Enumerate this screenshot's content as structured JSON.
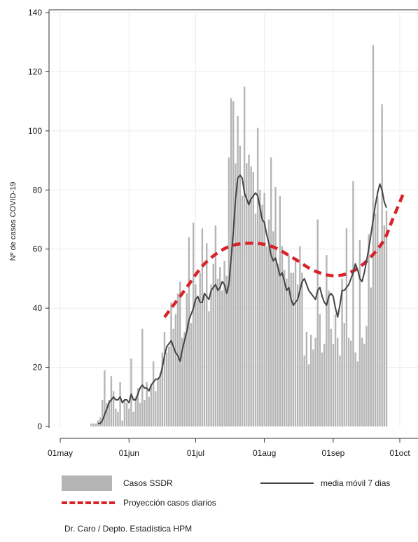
{
  "chart_data": {
    "type": "bar",
    "xlabel": "",
    "ylabel": "Nº de casos COVID-19",
    "ylim": [
      0,
      140
    ],
    "yticks": [
      0,
      20,
      40,
      60,
      80,
      100,
      120,
      140
    ],
    "xticks": [
      {
        "label": "01may",
        "day": 0
      },
      {
        "label": "01jun",
        "day": 31
      },
      {
        "label": "01jul",
        "day": 61
      },
      {
        "label": "01aug",
        "day": 92
      },
      {
        "label": "01sep",
        "day": 123
      },
      {
        "label": "01oct",
        "day": 153
      }
    ],
    "x_start": "2020-05-15",
    "x_end": "2020-10-04",
    "grid": true,
    "series": [
      {
        "name": "Casos SSDR",
        "type": "bar",
        "color": "#b5b5b5",
        "values": [
          1,
          1,
          1,
          2,
          3,
          9,
          19,
          8,
          9,
          17,
          12,
          6,
          5,
          15,
          2,
          9,
          8,
          6,
          23,
          5,
          10,
          13,
          8,
          33,
          9,
          15,
          10,
          14,
          22,
          12,
          16,
          18,
          25,
          32,
          25,
          27,
          42,
          33,
          38,
          45,
          49,
          30,
          32,
          45,
          64,
          35,
          69,
          48,
          43,
          52,
          67,
          45,
          62,
          39,
          48,
          55,
          68,
          50,
          54,
          46,
          56,
          51,
          91,
          111,
          110,
          89,
          105,
          95,
          78,
          115,
          89,
          92,
          88,
          86,
          72,
          101,
          80,
          75,
          79,
          61,
          70,
          91,
          66,
          81,
          55,
          78,
          61,
          53,
          50,
          58,
          52,
          52,
          56,
          48,
          61,
          52,
          24,
          32,
          21,
          31,
          26,
          30,
          70,
          38,
          25,
          28,
          58,
          46,
          33,
          28,
          38,
          30,
          24,
          50,
          35,
          67,
          30,
          29,
          83,
          25,
          22,
          63,
          30,
          28,
          34,
          65,
          47,
          129,
          72,
          78,
          61,
          109,
          68,
          73
        ]
      },
      {
        "name": "media móvil 7 dias",
        "type": "line",
        "color": "#444444",
        "values": [
          null,
          null,
          null,
          1,
          1,
          2,
          4,
          6,
          8,
          9,
          10,
          9,
          9,
          10,
          8,
          9,
          9,
          8,
          11,
          9,
          9,
          11,
          13,
          14,
          13,
          13,
          12,
          14,
          15,
          16,
          16,
          17,
          20,
          24,
          27,
          28,
          29,
          27,
          25,
          24,
          22,
          26,
          29,
          32,
          36,
          38,
          40,
          43,
          44,
          42,
          42,
          45,
          44,
          43,
          46,
          47,
          48,
          46,
          47,
          49,
          48,
          45,
          48,
          57,
          66,
          77,
          84,
          85,
          84,
          79,
          77,
          75,
          77,
          78,
          79,
          78,
          74,
          70,
          69,
          65,
          62,
          58,
          56,
          57,
          54,
          51,
          52,
          49,
          46,
          47,
          43,
          41,
          42,
          43,
          46,
          49,
          50,
          48,
          46,
          45,
          44,
          43,
          46,
          47,
          44,
          42,
          41,
          44,
          45,
          44,
          40,
          37,
          41,
          46,
          46,
          47,
          48,
          50,
          52,
          55,
          53,
          50,
          49,
          52,
          56,
          60,
          65,
          70,
          75,
          79,
          82,
          80,
          76,
          74
        ]
      },
      {
        "name": "Proyección casos diarios",
        "type": "line",
        "style": "dashed",
        "color": "#d8232a",
        "points": [
          [
            47,
            37
          ],
          [
            56,
            46
          ],
          [
            65,
            55
          ],
          [
            75,
            60.5
          ],
          [
            85,
            62
          ],
          [
            95,
            61
          ],
          [
            105,
            57
          ],
          [
            115,
            52.5
          ],
          [
            125,
            51
          ],
          [
            135,
            54
          ],
          [
            145,
            62
          ],
          [
            150,
            70.5
          ],
          [
            155,
            79.5
          ]
        ]
      }
    ]
  },
  "legend": {
    "bars_label": "Casos SSDR",
    "line_label": "media móvil 7 dias",
    "dashed_label": "Proyección casos diarios"
  },
  "credit": "Dr. Caro / Depto. Estadística HPM"
}
